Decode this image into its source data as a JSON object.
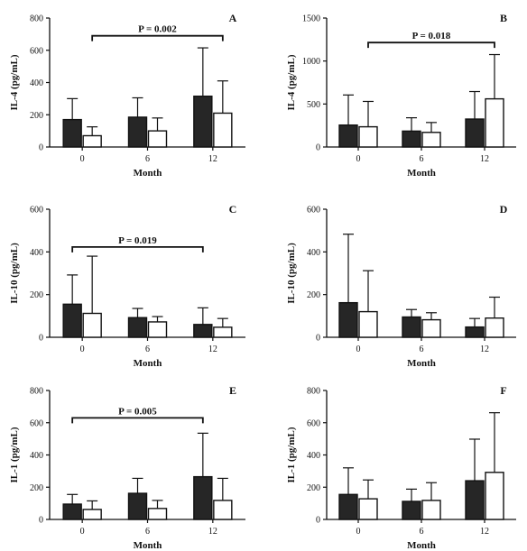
{
  "chart_data": [
    {
      "panel": "A",
      "type": "bar",
      "categories": [
        "0",
        "6",
        "12"
      ],
      "xlabel": "Month",
      "ylabel": "IL-4 (pg/mL)",
      "ylim": [
        0,
        800
      ],
      "yticks": [
        "0",
        "200",
        "400",
        "600",
        "800"
      ],
      "series": [
        {
          "fill": "#262626",
          "values": [
            170,
            185,
            315
          ],
          "error_upper": [
            300,
            305,
            615
          ]
        },
        {
          "fill": "#ffffff",
          "values": [
            70,
            100,
            210
          ],
          "error_upper": [
            125,
            180,
            410
          ]
        }
      ],
      "significance": {
        "label": "P = 0.002",
        "from_category": 0,
        "from_series": 1,
        "to_category": 2,
        "to_series": 1,
        "y": 690
      }
    },
    {
      "panel": "B",
      "type": "bar",
      "categories": [
        "0",
        "6",
        "12"
      ],
      "xlabel": "Month",
      "ylabel": "IL-4 (pg/mL)",
      "ylim": [
        0,
        1500
      ],
      "yticks": [
        "0",
        "500",
        "1000",
        "1500"
      ],
      "series": [
        {
          "fill": "#262626",
          "values": [
            255,
            185,
            325
          ],
          "error_upper": [
            605,
            340,
            645
          ]
        },
        {
          "fill": "#ffffff",
          "values": [
            235,
            170,
            560
          ],
          "error_upper": [
            530,
            285,
            1075
          ]
        }
      ],
      "significance": {
        "label": "P = 0.018",
        "from_category": 0,
        "from_series": 1,
        "to_category": 2,
        "to_series": 1,
        "y": 1215
      }
    },
    {
      "panel": "C",
      "type": "bar",
      "categories": [
        "0",
        "6",
        "12"
      ],
      "xlabel": "Month",
      "ylabel": "IL-10 (pg/mL)",
      "ylim": [
        0,
        600
      ],
      "yticks": [
        "0",
        "200",
        "400",
        "600"
      ],
      "series": [
        {
          "fill": "#262626",
          "values": [
            155,
            92,
            60
          ],
          "error_upper": [
            292,
            135,
            138
          ]
        },
        {
          "fill": "#ffffff",
          "values": [
            112,
            72,
            47
          ],
          "error_upper": [
            380,
            97,
            88
          ]
        }
      ],
      "significance": {
        "label": "P = 0.019",
        "from_category": 0,
        "from_series": 0,
        "to_category": 2,
        "to_series": 0,
        "y": 423
      }
    },
    {
      "panel": "D",
      "type": "bar",
      "categories": [
        "0",
        "6",
        "12"
      ],
      "xlabel": "Month",
      "ylabel": "IL-10 (pg/mL)",
      "ylim": [
        0,
        600
      ],
      "yticks": [
        "0",
        "200",
        "400",
        "600"
      ],
      "series": [
        {
          "fill": "#262626",
          "values": [
            162,
            95,
            48
          ],
          "error_upper": [
            483,
            130,
            88
          ]
        },
        {
          "fill": "#ffffff",
          "values": [
            120,
            82,
            90
          ],
          "error_upper": [
            312,
            115,
            188
          ]
        }
      ]
    },
    {
      "panel": "E",
      "type": "bar",
      "categories": [
        "0",
        "6",
        "12"
      ],
      "xlabel": "Month",
      "ylabel": "IL-1 (pg/mL)",
      "ylim": [
        0,
        800
      ],
      "yticks": [
        "0",
        "200",
        "400",
        "600",
        "800"
      ],
      "series": [
        {
          "fill": "#262626",
          "values": [
            95,
            162,
            265
          ],
          "error_upper": [
            155,
            255,
            535
          ]
        },
        {
          "fill": "#ffffff",
          "values": [
            62,
            68,
            118
          ],
          "error_upper": [
            115,
            118,
            255
          ]
        }
      ],
      "significance": {
        "label": "P = 0.005",
        "from_category": 0,
        "from_series": 0,
        "to_category": 2,
        "to_series": 0,
        "y": 630
      }
    },
    {
      "panel": "F",
      "type": "bar",
      "categories": [
        "0",
        "6",
        "12"
      ],
      "xlabel": "Month",
      "ylabel": "IL-1 (pg/mL)",
      "ylim": [
        0,
        800
      ],
      "yticks": [
        "0",
        "200",
        "400",
        "600",
        "800"
      ],
      "series": [
        {
          "fill": "#262626",
          "values": [
            155,
            112,
            240
          ],
          "error_upper": [
            320,
            188,
            498
          ]
        },
        {
          "fill": "#ffffff",
          "values": [
            128,
            118,
            292
          ],
          "error_upper": [
            245,
            228,
            662
          ]
        }
      ]
    }
  ]
}
